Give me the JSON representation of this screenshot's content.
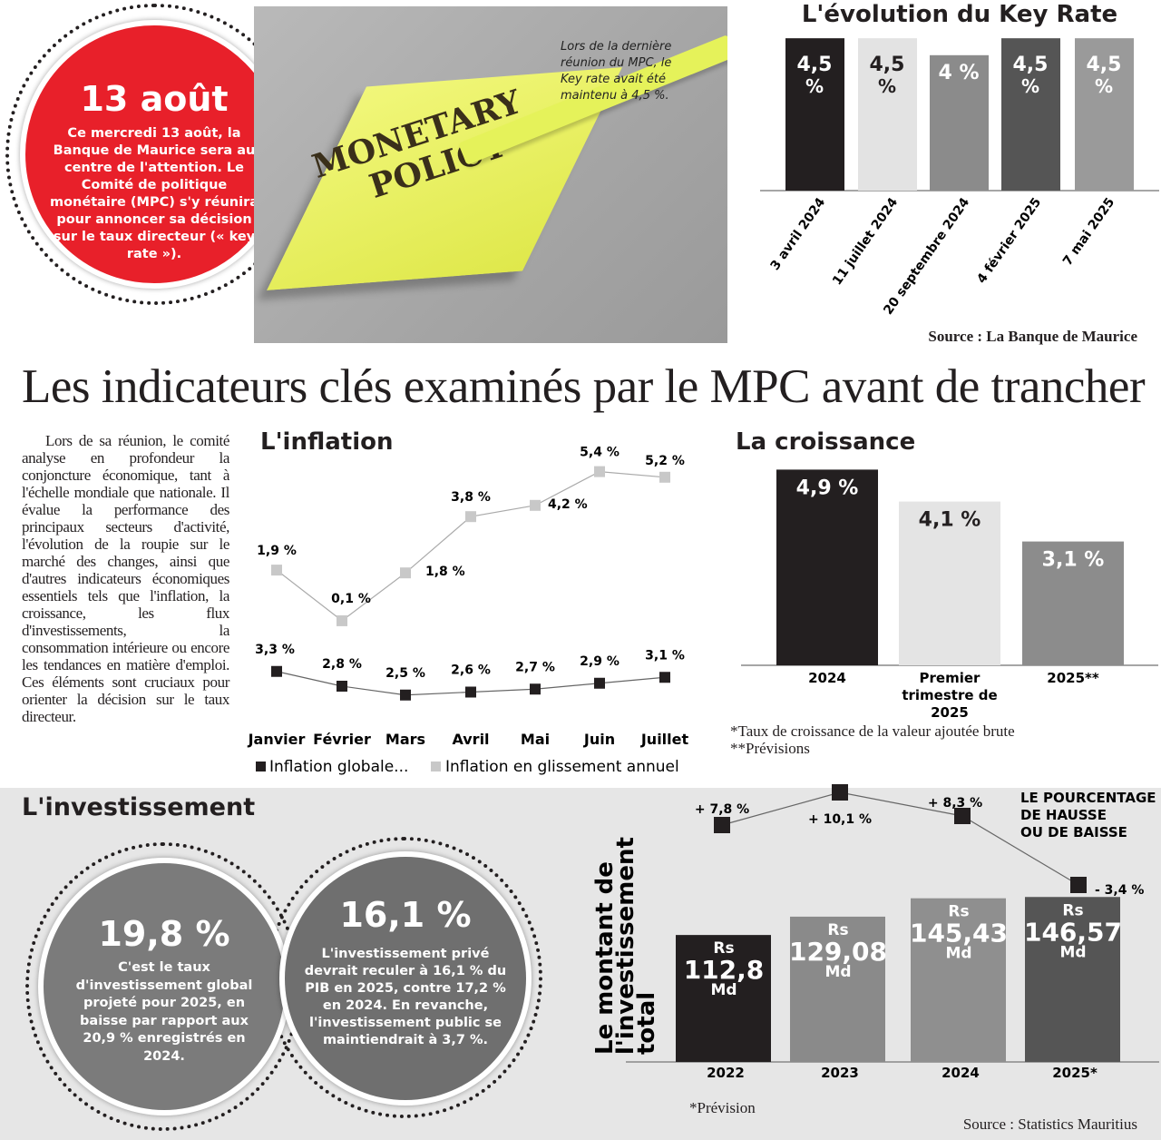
{
  "date_circle": {
    "title": "13 août",
    "text": "Ce mercredi 13 août, la Banque de Maurice sera au centre de l'attention. Le Comité de politique monétaire (MPC) s'y réunira pour annoncer sa décision sur le taux directeur (« key rate »)."
  },
  "photo": {
    "note_text_1": "MONETARY",
    "note_text_2": "POLICY",
    "caption": "Lors de la dernière réunion du MPC, le Key rate avait été maintenu à 4,5 %."
  },
  "headline": "Les indicateurs clés examinés par le MPC avant de trancher",
  "body_text": "Lors de sa réunion, le comité analyse en profondeur la conjoncture économique, tant à l'échelle mondiale que nationale. Il évalue la performance des principaux secteurs d'activité, l'évolution de la roupie sur le marché des changes, ainsi que d'autres indicateurs économiques essentiels tels que l'inflation, la croissance, les flux d'investissements, la consommation intérieure ou encore les tendances en matière d'emploi. Ces éléments sont cruciaux pour orienter la décision sur le taux directeur.",
  "chart_data": [
    {
      "id": "key_rate",
      "type": "bar",
      "title": "L'évolution du Key Rate",
      "categories": [
        "3 avril 2024",
        "11 juillet 2024",
        "20 septembre 2024",
        "4 février 2025",
        "7 mai 2025"
      ],
      "values": [
        4.5,
        4.5,
        4,
        4.5,
        4.5
      ],
      "data_labels": [
        "4,5 %",
        "4,5 %",
        "4 %",
        "4,5 %",
        "4,5 %"
      ],
      "colors": [
        "#231f20",
        "#e3e3e3",
        "#8b8b8b",
        "#555555",
        "#9a9a9a"
      ],
      "source": "Source : La Banque de Maurice"
    },
    {
      "id": "inflation",
      "type": "line",
      "title": "L'inflation",
      "categories": [
        "Janvier",
        "Février",
        "Mars",
        "Avril",
        "Mai",
        "Juin",
        "Juillet"
      ],
      "series": [
        {
          "name": "Inflation globale...",
          "values": [
            3.3,
            2.8,
            2.5,
            2.6,
            2.7,
            2.9,
            3.1
          ],
          "labels": [
            "3,3 %",
            "2,8 %",
            "2,5 %",
            "2,6 %",
            "2,7 %",
            "2,9 %",
            "3,1 %"
          ],
          "color": "#231f20"
        },
        {
          "name": "Inflation en glissement annuel",
          "values": [
            1.9,
            0.1,
            1.8,
            3.8,
            4.2,
            5.4,
            5.2
          ],
          "labels": [
            "1,9 %",
            "0,1 %",
            "1,8 %",
            "3,8 %",
            "4,2 %",
            "5,4 %",
            "5,2 %"
          ],
          "color": "#c8c8c8"
        }
      ],
      "legend": "bottom"
    },
    {
      "id": "croissance",
      "type": "bar",
      "title": "La croissance",
      "categories": [
        "2024",
        "Premier trimestre de 2025",
        "2025**"
      ],
      "values": [
        4.9,
        4.1,
        3.1
      ],
      "data_labels": [
        "4,9 %",
        "4,1 %",
        "3,1 %"
      ],
      "colors": [
        "#231f20",
        "#e4e4e4",
        "#8c8c8c"
      ],
      "notes": [
        "*Taux de croissance de la valeur ajoutée brute",
        "**Prévisions"
      ]
    },
    {
      "id": "investissement",
      "type": "bar",
      "ylabel": "Le montant de l'investissement total",
      "categories": [
        "2022",
        "2023",
        "2024",
        "2025*"
      ],
      "values": [
        112.8,
        129.08,
        145.43,
        146.57
      ],
      "data_labels": [
        "112,8",
        "129,08",
        "145,43",
        "146,57"
      ],
      "label_prefix": "Rs",
      "label_unit": "Md",
      "colors": [
        "#231f20",
        "#8a8a8a",
        "#8f8f8f",
        "#555555"
      ],
      "change_series": {
        "name": "LE POURCENTAGE DE HAUSSE OU DE BAISSE",
        "values": [
          7.8,
          10.1,
          8.3,
          -3.4
        ],
        "labels": [
          "+ 7,8 %",
          "+ 10,1 %",
          "+ 8,3 %",
          "- 3,4 %"
        ]
      },
      "note": "*Prévision",
      "source": "Source : Statistics Mauritius"
    }
  ],
  "invest_section": {
    "title": "L'investissement",
    "circle1": {
      "value": "19,8 %",
      "text": "C'est le taux d'investissement global projeté pour 2025, en baisse par rapport aux 20,9 % enregistrés en 2024."
    },
    "circle2": {
      "value": "16,1 %",
      "text": "L'investissement privé devrait reculer à 16,1 % du PIB en 2025, contre 17,2 % en 2024. En revanche, l'investissement public se maintiendrait à 3,7 %."
    }
  }
}
